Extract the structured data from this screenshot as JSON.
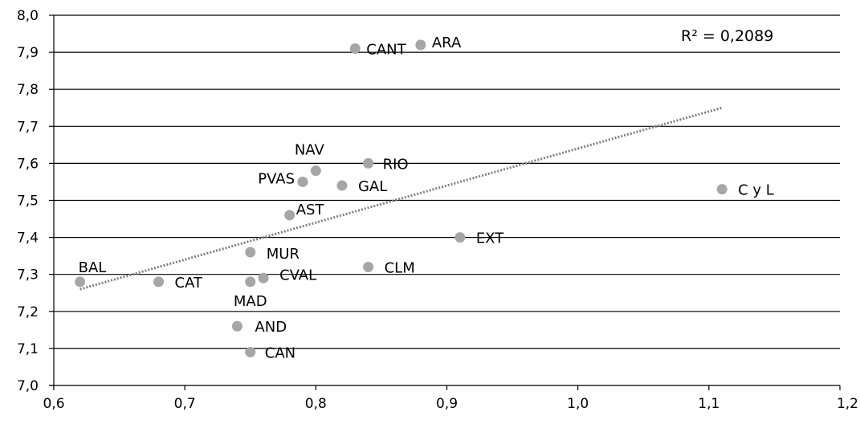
{
  "chart_data": {
    "type": "scatter",
    "title": "",
    "xlabel": "",
    "ylabel": "",
    "xlim": [
      0.6,
      1.2
    ],
    "ylim": [
      7.0,
      8.0
    ],
    "x_ticks": [
      "0,6",
      "0,7",
      "0,8",
      "0,9",
      "1,0",
      "1,1",
      "1,2"
    ],
    "y_ticks": [
      "7,0",
      "7,1",
      "7,2",
      "7,3",
      "7,4",
      "7,5",
      "7,6",
      "7,7",
      "7,8",
      "7,9",
      "8,0"
    ],
    "grid": true,
    "point_color": "#a6a6a6",
    "trendline_color": "#7f7f7f",
    "points": [
      {
        "label": "CANT",
        "x": 0.83,
        "y": 7.91
      },
      {
        "label": "ARA",
        "x": 0.88,
        "y": 7.92
      },
      {
        "label": "NAV",
        "x": 0.8,
        "y": 7.58
      },
      {
        "label": "RIO",
        "x": 0.84,
        "y": 7.6
      },
      {
        "label": "PVAS",
        "x": 0.79,
        "y": 7.55
      },
      {
        "label": "GAL",
        "x": 0.82,
        "y": 7.54
      },
      {
        "label": "C y L",
        "x": 1.11,
        "y": 7.53
      },
      {
        "label": "AST",
        "x": 0.78,
        "y": 7.46
      },
      {
        "label": "EXT",
        "x": 0.91,
        "y": 7.4
      },
      {
        "label": "MUR",
        "x": 0.75,
        "y": 7.36
      },
      {
        "label": "CLM",
        "x": 0.84,
        "y": 7.32
      },
      {
        "label": "BAL",
        "x": 0.62,
        "y": 7.28
      },
      {
        "label": "CAT",
        "x": 0.68,
        "y": 7.28
      },
      {
        "label": "CVAL",
        "x": 0.76,
        "y": 7.29
      },
      {
        "label": "MAD",
        "x": 0.75,
        "y": 7.28
      },
      {
        "label": "AND",
        "x": 0.74,
        "y": 7.16
      },
      {
        "label": "CAN",
        "x": 0.75,
        "y": 7.09
      }
    ],
    "trendline": {
      "type": "linear",
      "x": [
        0.62,
        1.11
      ],
      "y": [
        7.26,
        7.75
      ],
      "r2_text": "R² = 0,2089"
    }
  }
}
